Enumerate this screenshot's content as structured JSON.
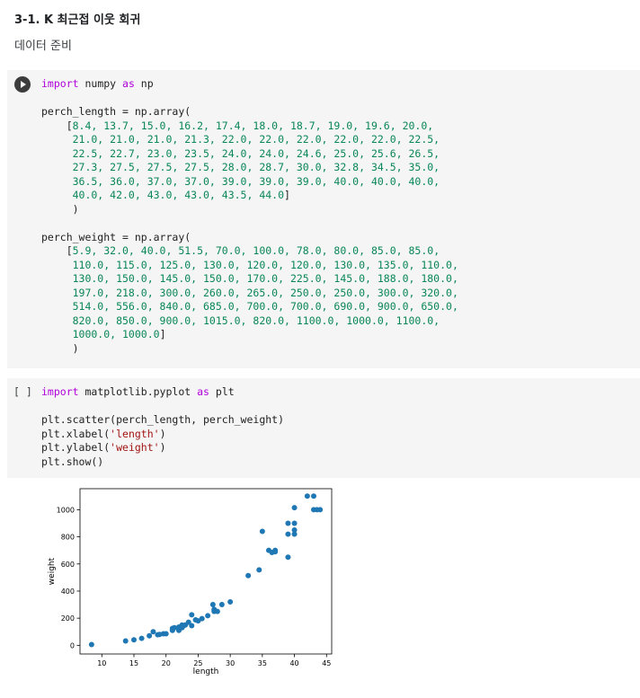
{
  "section": {
    "heading": "3-1. K 최근접 이웃 회귀",
    "subheading": "데이터 준비"
  },
  "cell1": {
    "run_icon": "play-icon",
    "code_lines": [
      [
        [
          "kw",
          "import"
        ],
        [
          "t",
          " numpy "
        ],
        [
          "kw",
          "as"
        ],
        [
          "t",
          " np"
        ]
      ],
      [],
      [
        [
          "t",
          "perch_length = np.array("
        ]
      ],
      [
        [
          "t",
          "    ["
        ],
        [
          "num",
          "8.4, 13.7, 15.0, 16.2, 17.4, 18.0, 18.7, 19.0, 19.6, 20.0,"
        ]
      ],
      [
        [
          "num",
          "     21.0, 21.0, 21.0, 21.3, 22.0, 22.0, 22.0, 22.0, 22.0, 22.5,"
        ]
      ],
      [
        [
          "num",
          "     22.5, 22.7, 23.0, 23.5, 24.0, 24.0, 24.6, 25.0, 25.6, 26.5,"
        ]
      ],
      [
        [
          "num",
          "     27.3, 27.5, 27.5, 27.5, 28.0, 28.7, 30.0, 32.8, 34.5, 35.0,"
        ]
      ],
      [
        [
          "num",
          "     36.5, 36.0, 37.0, 37.0, 39.0, 39.0, 39.0, 40.0, 40.0, 40.0,"
        ]
      ],
      [
        [
          "num",
          "     40.0, 42.0, 43.0, 43.0, 43.5, 44.0"
        ],
        [
          "t",
          "]"
        ]
      ],
      [
        [
          "t",
          "     )"
        ]
      ],
      [],
      [
        [
          "t",
          "perch_weight = np.array("
        ]
      ],
      [
        [
          "t",
          "    ["
        ],
        [
          "num",
          "5.9, 32.0, 40.0, 51.5, 70.0, 100.0, 78.0, 80.0, 85.0, 85.0,"
        ]
      ],
      [
        [
          "num",
          "     110.0, 115.0, 125.0, 130.0, 120.0, 120.0, 130.0, 135.0, 110.0,"
        ]
      ],
      [
        [
          "num",
          "     130.0, 150.0, 145.0, 150.0, 170.0, 225.0, 145.0, 188.0, 180.0,"
        ]
      ],
      [
        [
          "num",
          "     197.0, 218.0, 300.0, 260.0, 265.0, 250.0, 250.0, 300.0, 320.0,"
        ]
      ],
      [
        [
          "num",
          "     514.0, 556.0, 840.0, 685.0, 700.0, 700.0, 690.0, 900.0, 650.0,"
        ]
      ],
      [
        [
          "num",
          "     820.0, 850.0, 900.0, 1015.0, 820.0, 1100.0, 1000.0, 1100.0,"
        ]
      ],
      [
        [
          "num",
          "     1000.0, 1000.0"
        ],
        [
          "t",
          "]"
        ]
      ],
      [
        [
          "t",
          "     )"
        ]
      ]
    ]
  },
  "cell2": {
    "indicator": "[ ]",
    "code_lines": [
      [
        [
          "kw",
          "import"
        ],
        [
          "t",
          " matplotlib.pyplot "
        ],
        [
          "kw",
          "as"
        ],
        [
          "t",
          " plt"
        ]
      ],
      [],
      [
        [
          "t",
          "plt.scatter(perch_length, perch_weight)"
        ]
      ],
      [
        [
          "t",
          "plt.xlabel("
        ],
        [
          "str",
          "'length'"
        ],
        [
          "t",
          ")"
        ]
      ],
      [
        [
          "t",
          "plt.ylabel("
        ],
        [
          "str",
          "'weight'"
        ],
        [
          "t",
          ")"
        ]
      ],
      [
        [
          "t",
          "plt.show()"
        ]
      ]
    ]
  },
  "chart_data": {
    "type": "scatter",
    "xlabel": "length",
    "ylabel": "weight",
    "xlim": [
      6.6,
      45.8
    ],
    "ylim": [
      -64,
      1155
    ],
    "xticks": [
      10,
      15,
      20,
      25,
      30,
      35,
      40,
      45
    ],
    "yticks": [
      0,
      200,
      400,
      600,
      800,
      1000
    ],
    "color": "#1f77b4",
    "x": [
      8.4,
      13.7,
      15.0,
      16.2,
      17.4,
      18.0,
      18.7,
      19.0,
      19.6,
      20.0,
      21.0,
      21.0,
      21.0,
      21.3,
      22.0,
      22.0,
      22.0,
      22.0,
      22.0,
      22.5,
      22.5,
      22.7,
      23.0,
      23.5,
      24.0,
      24.0,
      24.6,
      25.0,
      25.6,
      26.5,
      27.3,
      27.5,
      27.5,
      27.5,
      28.0,
      28.7,
      30.0,
      32.8,
      34.5,
      35.0,
      36.5,
      36.0,
      37.0,
      37.0,
      39.0,
      39.0,
      39.0,
      40.0,
      40.0,
      40.0,
      40.0,
      42.0,
      43.0,
      43.0,
      43.5,
      44.0
    ],
    "y": [
      5.9,
      32.0,
      40.0,
      51.5,
      70.0,
      100.0,
      78.0,
      80.0,
      85.0,
      85.0,
      110.0,
      115.0,
      125.0,
      130.0,
      120.0,
      120.0,
      130.0,
      135.0,
      110.0,
      130.0,
      150.0,
      145.0,
      150.0,
      170.0,
      225.0,
      145.0,
      188.0,
      180.0,
      197.0,
      218.0,
      300.0,
      260.0,
      265.0,
      250.0,
      250.0,
      300.0,
      320.0,
      514.0,
      556.0,
      840.0,
      685.0,
      700.0,
      700.0,
      690.0,
      900.0,
      650.0,
      820.0,
      850.0,
      900.0,
      1015.0,
      820.0,
      1100.0,
      1000.0,
      1100.0,
      1000.0,
      1000.0
    ]
  }
}
